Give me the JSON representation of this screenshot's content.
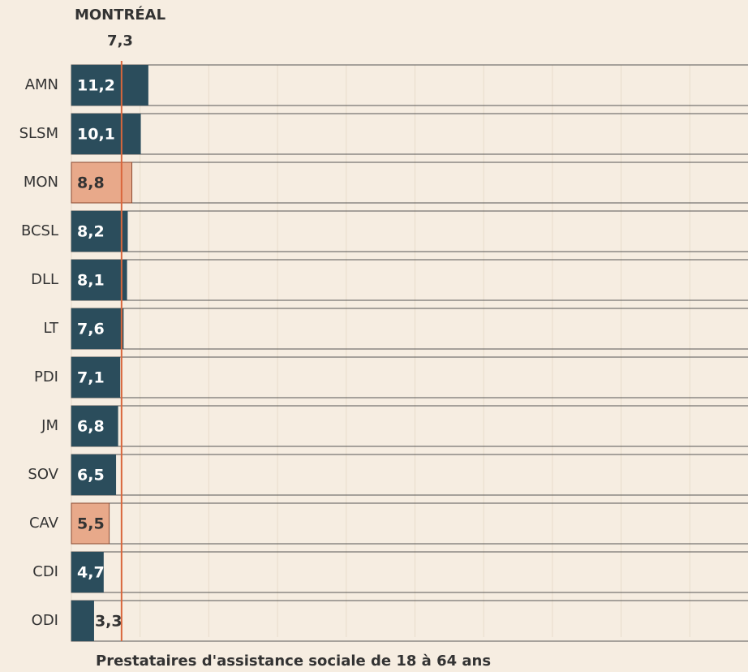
{
  "chart_data": {
    "type": "hbar",
    "categories": [
      "AMN",
      "SLSM",
      "MON",
      "BCSL",
      "DLL",
      "LT",
      "PDI",
      "JM",
      "SOV",
      "CAV",
      "CDI",
      "ODI"
    ],
    "values": [
      11.2,
      10.1,
      8.8,
      8.2,
      8.1,
      7.6,
      7.1,
      6.8,
      6.5,
      5.5,
      4.7,
      3.3
    ],
    "value_labels": [
      "11,2",
      "10,1",
      "8,8",
      "8,2",
      "8,1",
      "7,6",
      "7,1",
      "6,8",
      "6,5",
      "5,5",
      "4,7",
      "3,3"
    ],
    "colors": [
      "#2b4d5c",
      "#2b4d5c",
      "#e8a98a",
      "#2b4d5c",
      "#2b4d5c",
      "#2b4d5c",
      "#2b4d5c",
      "#2b4d5c",
      "#2b4d5c",
      "#e8a98a",
      "#2b4d5c",
      "#2b4d5c"
    ],
    "xlim": [
      0,
      100
    ],
    "xticks": [
      0,
      10,
      20,
      30,
      40,
      50,
      60,
      70,
      80,
      90,
      100
    ],
    "grid": true,
    "x_label": "Prestataires d'assistance sociale de 18 à 64 ans",
    "reference": {
      "name": "MONTRÉAL",
      "value": 7.3,
      "value_label": "7,3",
      "color": "#d9663c"
    }
  }
}
